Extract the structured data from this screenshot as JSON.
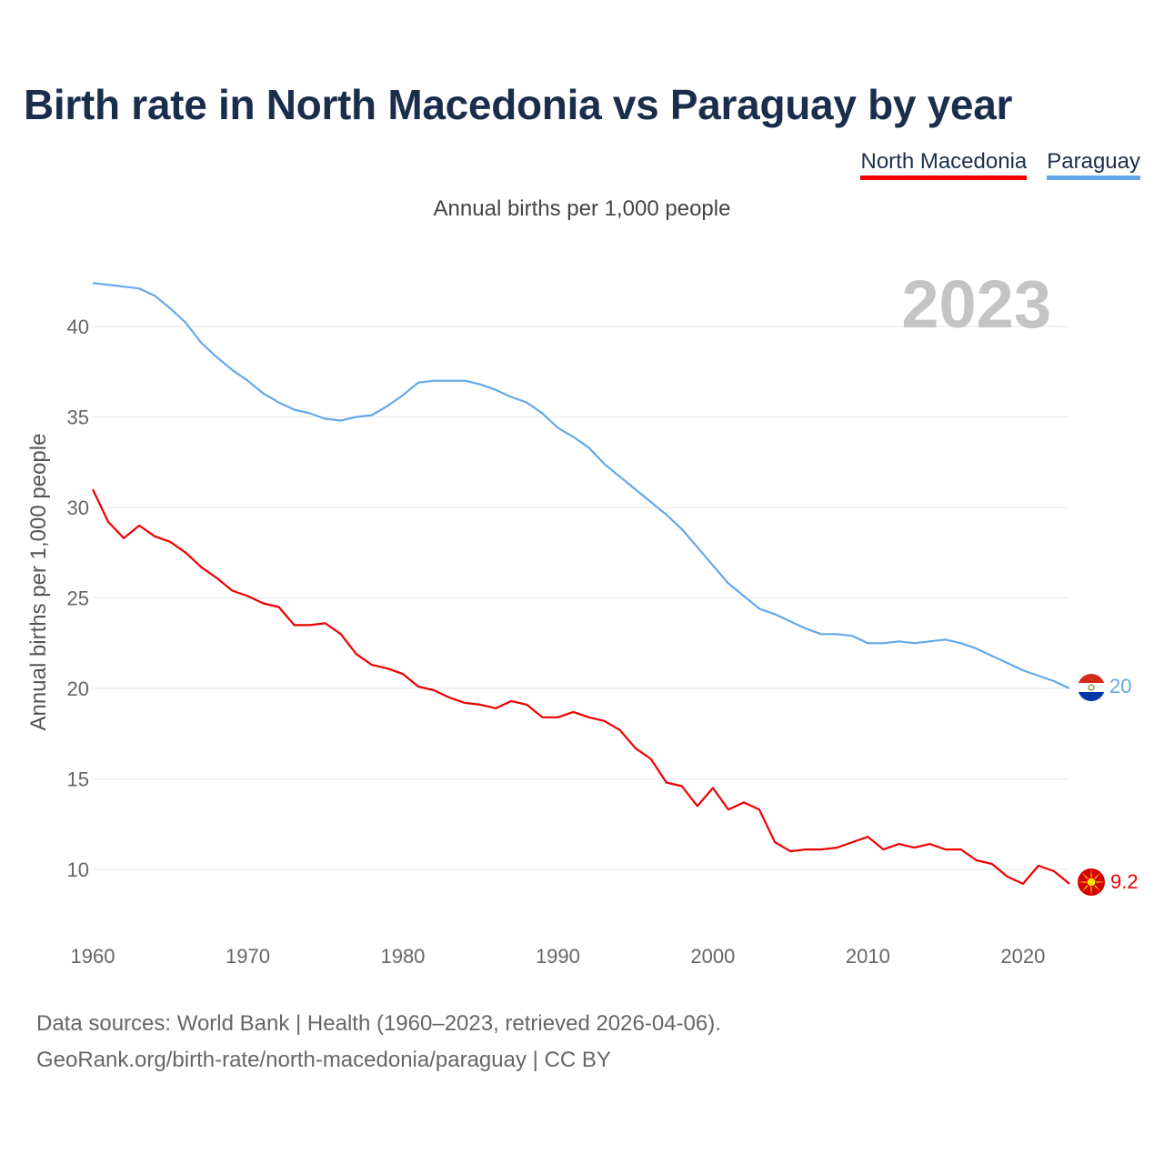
{
  "title": "Birth rate in North Macedonia vs Paraguay by year",
  "legend": [
    {
      "name": "North Macedonia",
      "color": "#ee0000"
    },
    {
      "name": "Paraguay",
      "color": "#64a8e8"
    }
  ],
  "subtitle": "Annual births per 1,000 people",
  "source": {
    "line1": "Data sources: World Bank | Health (1960–2023, retrieved 2026-04-06).",
    "line2": "GeoRank.org/birth-rate/north-macedonia/paraguay | CC BY"
  },
  "chart_data": {
    "type": "line",
    "ylabel": "Annual births per 1,000 people",
    "xlabel": "",
    "ylim": [
      7,
      44
    ],
    "xlim": [
      1960,
      2023
    ],
    "yticks": [
      10,
      15,
      20,
      25,
      30,
      35,
      40
    ],
    "xticks": [
      1960,
      1970,
      1980,
      1990,
      2000,
      2010,
      2020
    ],
    "grid": true,
    "watermark_year": "2023",
    "x": [
      1960,
      1961,
      1962,
      1963,
      1964,
      1965,
      1966,
      1967,
      1968,
      1969,
      1970,
      1971,
      1972,
      1973,
      1974,
      1975,
      1976,
      1977,
      1978,
      1979,
      1980,
      1981,
      1982,
      1983,
      1984,
      1985,
      1986,
      1987,
      1988,
      1989,
      1990,
      1991,
      1992,
      1993,
      1994,
      1995,
      1996,
      1997,
      1998,
      1999,
      2000,
      2001,
      2002,
      2003,
      2004,
      2005,
      2006,
      2007,
      2008,
      2009,
      2010,
      2011,
      2012,
      2013,
      2014,
      2015,
      2016,
      2017,
      2018,
      2019,
      2020,
      2021,
      2022,
      2023
    ],
    "series": [
      {
        "name": "North Macedonia",
        "color": "#ee0000",
        "end_label": "9.2",
        "values": [
          31.0,
          29.2,
          28.3,
          29.0,
          28.4,
          28.1,
          27.5,
          26.7,
          26.1,
          25.4,
          25.1,
          24.7,
          24.5,
          23.5,
          23.5,
          23.6,
          23.0,
          21.9,
          21.3,
          21.1,
          20.8,
          20.1,
          19.9,
          19.5,
          19.2,
          19.1,
          18.9,
          19.3,
          19.1,
          18.4,
          18.4,
          18.7,
          18.4,
          18.2,
          17.7,
          16.7,
          16.1,
          14.8,
          14.6,
          13.5,
          14.5,
          13.3,
          13.7,
          13.3,
          11.5,
          11.0,
          11.1,
          11.1,
          11.2,
          11.5,
          11.8,
          11.1,
          11.4,
          11.2,
          11.4,
          11.1,
          11.1,
          10.5,
          10.3,
          9.6,
          9.2,
          10.2,
          9.9,
          9.2
        ]
      },
      {
        "name": "Paraguay",
        "color": "#64a8e8",
        "end_label": "20",
        "values": [
          42.4,
          42.3,
          42.2,
          42.1,
          41.7,
          41.0,
          40.2,
          39.1,
          38.3,
          37.6,
          37.0,
          36.3,
          35.8,
          35.4,
          35.2,
          34.9,
          34.8,
          35.0,
          35.1,
          35.6,
          36.2,
          36.9,
          37.0,
          37.0,
          37.0,
          36.8,
          36.5,
          36.1,
          35.8,
          35.2,
          34.4,
          33.9,
          33.3,
          32.4,
          31.7,
          31.0,
          30.3,
          29.6,
          28.8,
          27.8,
          26.8,
          25.8,
          25.1,
          24.4,
          24.1,
          23.7,
          23.3,
          23.0,
          23.0,
          22.9,
          22.5,
          22.5,
          22.6,
          22.5,
          22.6,
          22.7,
          22.5,
          22.2,
          21.8,
          21.4,
          21.0,
          20.7,
          20.4,
          20.0
        ]
      }
    ]
  }
}
